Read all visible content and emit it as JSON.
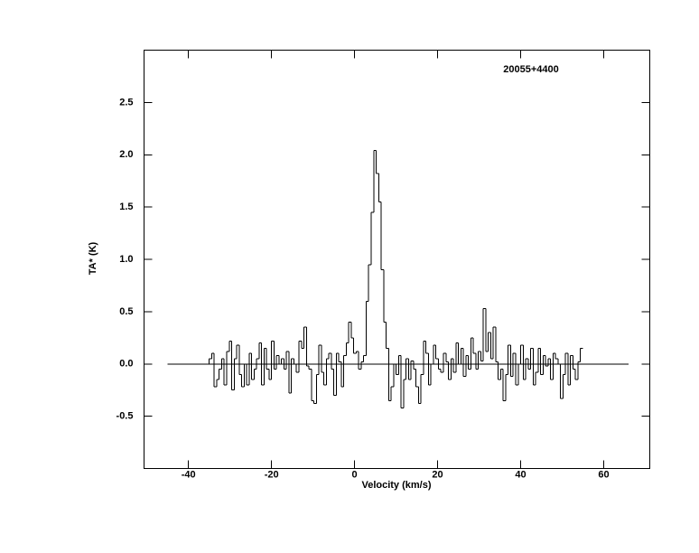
{
  "chart_data": {
    "type": "step",
    "title": "20055+4400",
    "x_label": "Velocity (km/s)",
    "y_label": "TA* (K)",
    "xlim": [
      -50.7,
      71.1
    ],
    "ylim": [
      -1.0,
      3.0
    ],
    "xticks": [
      -40,
      -20,
      0,
      20,
      40,
      60
    ],
    "yticks": [
      -0.5,
      {
        "value": 0,
        "label": "0.0"
      },
      0.5,
      {
        "value": 1,
        "label": "1.0"
      },
      1.5,
      {
        "value": 2,
        "label": "2.0"
      },
      2.5
    ],
    "baseline_x": [
      -45,
      66
    ],
    "baseline_y": 0,
    "color": "#000000",
    "x": [
      -34.7,
      -34.1,
      -33.5,
      -32.9,
      -32.3,
      -31.7,
      -31.1,
      -30.5,
      -29.9,
      -29.3,
      -28.7,
      -28.1,
      -27.5,
      -26.9,
      -26.3,
      -25.7,
      -25.1,
      -24.5,
      -23.9,
      -23.3,
      -22.7,
      -22.1,
      -21.5,
      -20.9,
      -20.3,
      -19.7,
      -19.1,
      -18.5,
      -17.9,
      -17.3,
      -16.7,
      -16.1,
      -15.5,
      -14.9,
      -14.3,
      -13.7,
      -13.1,
      -12.5,
      -11.9,
      -11.3,
      -10.7,
      -10.1,
      -9.5,
      -8.9,
      -8.3,
      -7.7,
      -7.1,
      -6.5,
      -5.9,
      -5.3,
      -4.7,
      -4.1,
      -3.5,
      -2.9,
      -2.3,
      -1.7,
      -1.1,
      -0.5,
      0.1,
      0.7,
      1.3,
      1.9,
      2.5,
      3.1,
      3.7,
      4.3,
      4.9,
      5.5,
      6.1,
      6.7,
      7.3,
      7.9,
      8.5,
      9.1,
      9.7,
      10.3,
      10.9,
      11.5,
      12.1,
      12.7,
      13.3,
      13.9,
      14.5,
      15.1,
      15.7,
      16.3,
      16.9,
      17.5,
      18.1,
      18.7,
      19.3,
      19.9,
      20.5,
      21.1,
      21.7,
      22.3,
      22.9,
      23.5,
      24.1,
      24.7,
      25.3,
      25.9,
      26.5,
      27.1,
      27.7,
      28.3,
      28.9,
      29.5,
      30.1,
      30.7,
      31.3,
      31.9,
      32.5,
      33.1,
      33.7,
      34.3,
      34.9,
      35.5,
      36.1,
      36.7,
      37.3,
      37.9,
      38.5,
      39.1,
      39.7,
      40.3,
      40.9,
      41.5,
      42.1,
      42.7,
      43.3,
      43.9,
      44.5,
      45.1,
      45.7,
      46.3,
      46.9,
      47.5,
      48.1,
      48.7,
      49.3,
      49.9,
      50.5,
      51.1,
      51.7,
      52.3,
      52.9,
      53.5,
      54.1,
      54.7
    ],
    "values": [
      0.05,
      0.1,
      -0.22,
      -0.15,
      -0.05,
      0.05,
      -0.2,
      0.12,
      0.22,
      -0.25,
      0.05,
      0.18,
      -0.1,
      -0.22,
      0.0,
      -0.2,
      0.1,
      -0.15,
      -0.05,
      0.05,
      0.2,
      -0.2,
      0.15,
      -0.05,
      -0.15,
      0.22,
      -0.05,
      0.08,
      0.0,
      0.05,
      -0.05,
      0.12,
      -0.28,
      0.05,
      0.0,
      -0.08,
      0.22,
      0.15,
      0.35,
      -0.02,
      -0.05,
      -0.35,
      -0.38,
      -0.1,
      0.18,
      -0.08,
      -0.2,
      0.05,
      0.1,
      -0.05,
      -0.3,
      0.1,
      0.02,
      -0.22,
      0.08,
      0.2,
      0.4,
      0.25,
      0.1,
      0.12,
      -0.05,
      0.02,
      0.08,
      0.6,
      0.95,
      1.45,
      2.04,
      1.82,
      1.55,
      0.9,
      0.4,
      0.15,
      -0.35,
      -0.22,
      0.0,
      -0.1,
      0.08,
      -0.42,
      -0.15,
      0.05,
      -0.15,
      0.03,
      -0.05,
      -0.22,
      -0.38,
      -0.1,
      0.22,
      0.1,
      -0.2,
      0.0,
      0.18,
      0.05,
      -0.05,
      -0.08,
      0.1,
      0.02,
      -0.15,
      0.05,
      -0.08,
      0.2,
      0.0,
      0.15,
      -0.12,
      0.08,
      -0.05,
      0.25,
      0.1,
      -0.05,
      0.12,
      0.03,
      0.53,
      0.12,
      0.3,
      0.05,
      0.35,
      0.02,
      -0.15,
      -0.05,
      -0.35,
      -0.1,
      0.18,
      -0.12,
      0.1,
      -0.2,
      0.0,
      0.18,
      -0.15,
      0.05,
      -0.05,
      0.15,
      -0.2,
      -0.08,
      0.15,
      -0.1,
      0.08,
      -0.02,
      0.05,
      -0.15,
      0.1,
      0.05,
      0.0,
      -0.33,
      -0.1,
      0.1,
      -0.2,
      0.08,
      -0.05,
      -0.15,
      0.02,
      0.15
    ]
  }
}
